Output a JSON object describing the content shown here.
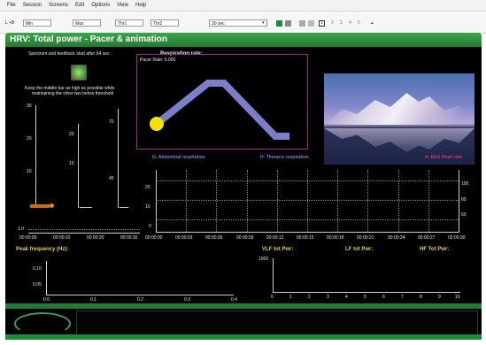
{
  "menu": [
    "File",
    "Session",
    "Screens",
    "Edit",
    "Options",
    "View",
    "Help"
  ],
  "toolbar": {
    "item1": "L +B",
    "min_label": "Min",
    "max_label": "Max",
    "thr1_label": "Thr1",
    "thr2_label": "Thr2",
    "duration": "30 sec",
    "screen_numbers": [
      "1",
      "2",
      "3",
      "4",
      "5"
    ]
  },
  "title": "HRV: Total power - Pacer & animation",
  "feedback": {
    "note": "Spectrum and feedback start after 64 sec.",
    "instruction_1": "Keep the middle bar as high as possible while",
    "instruction_2": "maintaining the other two below threshold",
    "bar_axes": [
      {
        "ticks": [
          "30",
          "20",
          "10"
        ]
      },
      {
        "ticks": [
          "20",
          "10"
        ]
      },
      {
        "ticks": [
          "70",
          "40"
        ]
      }
    ]
  },
  "pacer": {
    "heading": "Respiration rate:",
    "rate_label": "Pacer Rate: 6.000"
  },
  "legend": {
    "abdominal": "G: Abdominal respiration",
    "thoracic": "H: Thoracic respiration",
    "ekg": "A: EKG Heart rate"
  },
  "main_chart": {
    "left_ticks": [
      "20",
      "10",
      "0"
    ],
    "right_ticks": [
      "100",
      "80",
      "60"
    ],
    "x_ticks": [
      "00:00:00",
      "00:00:03",
      "00:00:06",
      "00:00:09",
      "00:00:12",
      "00:00:15",
      "00:00:18",
      "00:00:21",
      "00:00:24",
      "00:00:27",
      "00:00:30"
    ]
  },
  "small_chart": {
    "y_tick": "1.0",
    "x_ticks": [
      "00:00:00",
      "00:00:10",
      "00:00:20",
      "00:00:30"
    ]
  },
  "peak": {
    "label": "Peak frequency (Hz):",
    "y_ticks": [
      "0.10",
      "0.05"
    ],
    "x_ticks": [
      "0.0",
      "0.1",
      "0.2",
      "0.3",
      "0.4"
    ]
  },
  "power": {
    "vlf": "VLF tot Pwr:",
    "lf": "LF tot Pwr:",
    "hf": "HF Tot Pwr:",
    "y_tick": "1000",
    "x_ticks": [
      "0",
      "1",
      "2",
      "3",
      "4",
      "5",
      "6",
      "7",
      "8",
      "9",
      "10"
    ]
  },
  "colors": {
    "title_green": "#2e9a3e",
    "pacer_line": "#7b7fc9",
    "pacer_ball": "#f4e100",
    "pacer_border": "#9c2a7a",
    "ekg_pink": "#d2367f",
    "abdominal": "#7e82c9"
  }
}
